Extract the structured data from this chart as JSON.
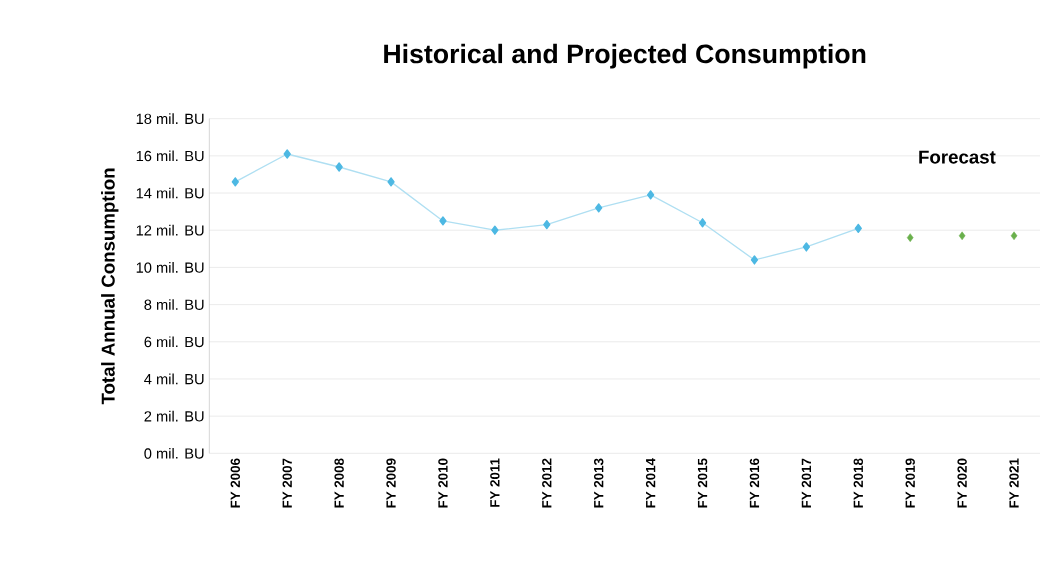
{
  "chart_data": {
    "type": "line",
    "title": "Historical and Projected Consumption",
    "ylabel": "Total Annual Consumption",
    "categories": [
      "FY 2006",
      "FY 2007",
      "FY 2008",
      "FY 2009",
      "FY 2010",
      "FY 2011",
      "FY 2012",
      "FY 2013",
      "FY 2014",
      "FY 2015",
      "FY 2016",
      "FY 2017",
      "FY 2018",
      "FY 2019",
      "FY 2020",
      "FY 2021"
    ],
    "series": [
      {
        "color": "#4db8e3",
        "values": [
          14.6,
          16.1,
          15.4,
          14.6,
          12.5,
          12.0,
          12.3,
          13.2,
          13.9,
          12.4,
          10.4,
          11.1,
          12.1,
          null,
          null,
          null
        ]
      },
      {
        "type": "scatter",
        "color": "#6ab04c",
        "values": [
          null,
          null,
          null,
          null,
          null,
          null,
          null,
          null,
          null,
          null,
          null,
          null,
          null,
          11.6,
          11.7,
          11.7
        ]
      }
    ],
    "ylim": [
      0,
      18
    ],
    "yticks": [
      {
        "value": 0,
        "label": "0 mil. BU"
      },
      {
        "value": 2,
        "label": "2 mil. BU"
      },
      {
        "value": 4,
        "label": "4 mil. BU"
      },
      {
        "value": 6,
        "label": "6 mil. BU"
      },
      {
        "value": 8,
        "label": "8 mil. BU"
      },
      {
        "value": 10,
        "label": "10 mil. BU"
      },
      {
        "value": 12,
        "label": "12 mil. BU"
      },
      {
        "value": 14,
        "label": "14 mil. BU"
      },
      {
        "value": 16,
        "label": "16 mil. BU"
      },
      {
        "value": 18,
        "label": "18 mil. BU"
      }
    ],
    "grid": "y",
    "marker": "diamond",
    "annotations": [
      "Forecast"
    ]
  }
}
